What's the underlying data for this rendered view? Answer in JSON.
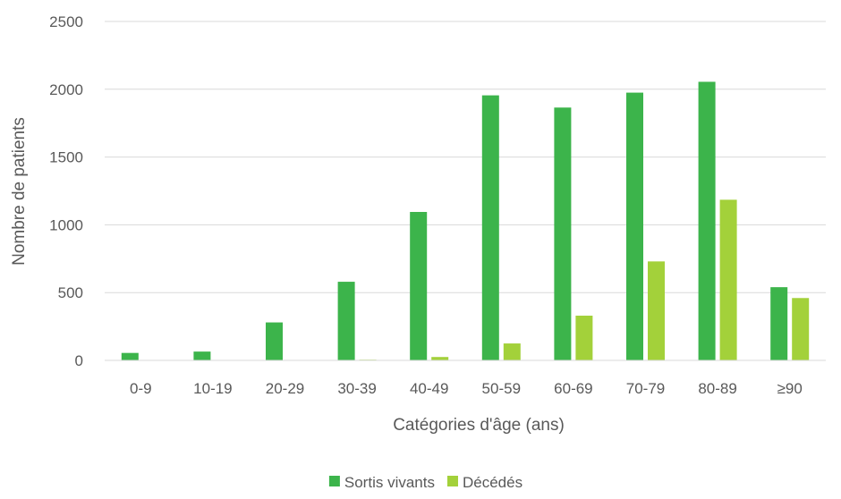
{
  "chart_data": {
    "type": "bar",
    "title": "",
    "xlabel": "Catégories d'âge (ans)",
    "ylabel": "Nombre de patients",
    "categories": [
      "0-9",
      "10-19",
      "20-29",
      "30-39",
      "40-49",
      "50-59",
      "60-69",
      "70-79",
      "80-89",
      "≥90"
    ],
    "series": [
      {
        "name": "Sortis vivants",
        "color": "#3cb44b",
        "values": [
          55,
          65,
          280,
          580,
          1095,
          1955,
          1865,
          1975,
          2055,
          540
        ]
      },
      {
        "name": "Décédés",
        "color": "#a3d13a",
        "values": [
          0,
          0,
          0,
          5,
          25,
          125,
          330,
          730,
          1185,
          460
        ]
      }
    ],
    "ylim": [
      0,
      2500
    ],
    "yticks": [
      "0",
      "500",
      "1000",
      "1500",
      "2000",
      "2500"
    ],
    "grid": true,
    "legend_position": "bottom-center"
  }
}
